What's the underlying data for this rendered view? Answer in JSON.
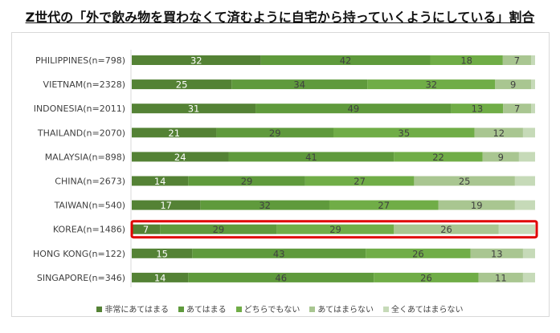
{
  "chart_data": {
    "type": "bar",
    "orientation": "horizontal",
    "stacked": true,
    "title": "Z世代の「外で飲み物を買わなくて済むように自宅から持っていくようにしている」割合",
    "categories": [
      "PHILIPPINES(n=798)",
      "VIETNAM(n=2328)",
      "INDONESIA(n=2011)",
      "THAILAND(n=2070)",
      "MALAYSIA(n=898)",
      "CHINA(n=2673)",
      "TAIWAN(n=540)",
      "KOREA(n=1486)",
      "HONG KONG(n=122)",
      "SINGAPORE(n=346)"
    ],
    "series": [
      {
        "name": "非常にあてはまる",
        "color": "#548235",
        "values": [
          32,
          25,
          31,
          21,
          24,
          14,
          17,
          7,
          15,
          14
        ]
      },
      {
        "name": "あてはまる",
        "color": "#5f9a3c",
        "values": [
          42,
          34,
          49,
          29,
          41,
          29,
          32,
          29,
          43,
          46
        ]
      },
      {
        "name": "どちらでもない",
        "color": "#70ad47",
        "values": [
          18,
          32,
          13,
          35,
          22,
          27,
          27,
          29,
          26,
          26
        ]
      },
      {
        "name": "あてはまらない",
        "color": "#a9c691",
        "values": [
          7,
          9,
          7,
          12,
          9,
          25,
          19,
          26,
          13,
          11
        ]
      },
      {
        "name": "全くあてはまらない",
        "color": "#c6dab8",
        "values": [
          1,
          1,
          1,
          3,
          4,
          5,
          5,
          9,
          3,
          3
        ],
        "labels_shown": false
      }
    ],
    "highlight": {
      "category": "KOREA(n=1486)",
      "color": "#e00000"
    },
    "legend": "bottom",
    "grid": false
  }
}
